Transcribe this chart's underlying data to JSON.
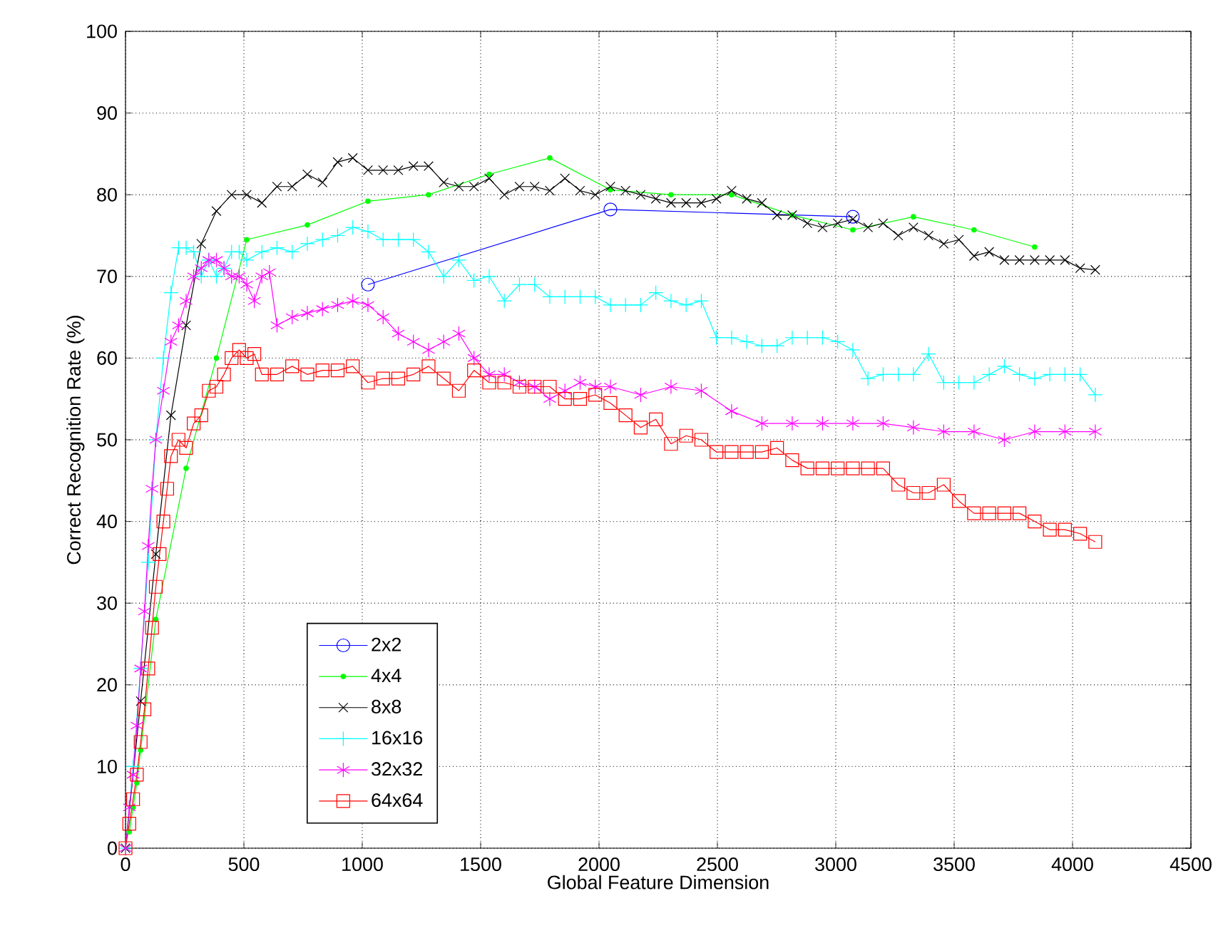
{
  "chart_data": {
    "type": "line",
    "xlabel": "Global Feature Dimension",
    "ylabel": "Correct Recognition Rate (%)",
    "xlim": [
      0,
      4500
    ],
    "ylim": [
      0,
      100
    ],
    "xticks": [
      0,
      500,
      1000,
      1500,
      2000,
      2500,
      3000,
      3500,
      4000,
      4500
    ],
    "yticks": [
      0,
      10,
      20,
      30,
      40,
      50,
      60,
      70,
      80,
      90,
      100
    ],
    "grid": true,
    "legend": "bottom left",
    "series": [
      {
        "name": "2x2",
        "color": "#0000ff",
        "marker": "circle",
        "x": [
          1024,
          2048,
          3072
        ],
        "values": [
          69,
          78.2,
          77.3
        ]
      },
      {
        "name": "4x4",
        "color": "#00ff00",
        "marker": "point",
        "x": [
          16,
          32,
          48,
          64,
          128,
          256,
          384,
          512,
          768,
          1024,
          1280,
          1536,
          1792,
          2048,
          2304,
          2560,
          2816,
          3072,
          3328,
          3584,
          3840
        ],
        "values": [
          2,
          5,
          8,
          12,
          28,
          46.5,
          60,
          74.5,
          76.3,
          79.2,
          80,
          82.5,
          84.5,
          80.6,
          80,
          80,
          77.5,
          75.7,
          77.3,
          75.7,
          73.6
        ]
      },
      {
        "name": "8x8",
        "color": "#000000",
        "marker": "x",
        "x": [
          0,
          64,
          128,
          192,
          256,
          320,
          384,
          448,
          512,
          576,
          640,
          704,
          768,
          832,
          896,
          960,
          1024,
          1088,
          1152,
          1216,
          1280,
          1344,
          1408,
          1472,
          1536,
          1600,
          1664,
          1728,
          1792,
          1856,
          1920,
          1984,
          2048,
          2112,
          2176,
          2240,
          2304,
          2368,
          2432,
          2496,
          2560,
          2624,
          2688,
          2752,
          2816,
          2880,
          2944,
          3008,
          3072,
          3136,
          3200,
          3264,
          3328,
          3392,
          3456,
          3520,
          3584,
          3648,
          3712,
          3776,
          3840,
          3904,
          3968,
          4032,
          4096
        ],
        "values": [
          0,
          18,
          36,
          53,
          64,
          74,
          78,
          80,
          80,
          79,
          81,
          81,
          82.5,
          81.5,
          84,
          84.5,
          83,
          83,
          83,
          83.5,
          83.5,
          81.5,
          81,
          81,
          82,
          80,
          81,
          81,
          80.5,
          82,
          80.5,
          80,
          81,
          80.5,
          80,
          79.5,
          79,
          79,
          79,
          79.5,
          80.5,
          79.5,
          79,
          77.5,
          77.5,
          76.5,
          76,
          76.5,
          77,
          76,
          76.5,
          75,
          76,
          75,
          74,
          74.5,
          72.5,
          73,
          72,
          72,
          72,
          72,
          72,
          71,
          70.8
        ]
      },
      {
        "name": "16x16",
        "color": "#00ffff",
        "marker": "plus",
        "x": [
          0,
          32,
          64,
          96,
          128,
          160,
          192,
          224,
          256,
          288,
          320,
          352,
          384,
          416,
          448,
          480,
          512,
          576,
          640,
          704,
          768,
          832,
          896,
          960,
          1024,
          1088,
          1152,
          1216,
          1280,
          1344,
          1408,
          1472,
          1536,
          1600,
          1664,
          1728,
          1792,
          1856,
          1920,
          1984,
          2048,
          2112,
          2176,
          2240,
          2304,
          2368,
          2432,
          2496,
          2560,
          2624,
          2688,
          2752,
          2816,
          2880,
          2944,
          3008,
          3072,
          3136,
          3200,
          3264,
          3328,
          3392,
          3456,
          3520,
          3584,
          3648,
          3712,
          3776,
          3840,
          3904,
          3968,
          4032,
          4096
        ],
        "values": [
          0,
          10,
          22,
          35,
          50,
          60,
          68,
          73.5,
          73.5,
          73,
          70,
          72,
          70,
          71,
          73,
          73,
          72,
          73,
          73.5,
          73,
          74,
          74.5,
          75,
          76,
          75.5,
          74.5,
          74.5,
          74.5,
          73,
          70,
          72,
          69.5,
          70,
          67,
          69,
          69,
          67.5,
          67.5,
          67.5,
          67.5,
          66.5,
          66.5,
          66.5,
          68,
          67,
          66.5,
          67,
          62.5,
          62.5,
          62,
          61.5,
          61.5,
          62.5,
          62.5,
          62.5,
          62,
          61,
          57.5,
          58,
          58,
          58,
          60.5,
          57,
          57,
          57,
          58,
          59,
          58,
          57.5,
          58,
          58,
          58,
          55.5
        ]
      },
      {
        "name": "32x32",
        "color": "#ff00ff",
        "marker": "cross",
        "x": [
          0,
          16,
          32,
          48,
          64,
          80,
          96,
          112,
          128,
          160,
          192,
          224,
          256,
          288,
          320,
          352,
          384,
          416,
          448,
          480,
          512,
          544,
          576,
          608,
          640,
          704,
          768,
          832,
          896,
          960,
          1024,
          1088,
          1152,
          1216,
          1280,
          1344,
          1408,
          1472,
          1536,
          1600,
          1664,
          1728,
          1792,
          1856,
          1920,
          1984,
          2048,
          2176,
          2304,
          2432,
          2560,
          2688,
          2816,
          2944,
          3072,
          3200,
          3328,
          3456,
          3584,
          3712,
          3840,
          3968,
          4096
        ],
        "values": [
          0,
          5,
          9,
          15,
          22,
          29,
          37,
          44,
          50,
          56,
          62,
          64,
          67,
          70,
          71,
          72,
          72,
          71,
          70,
          70,
          69,
          67,
          70,
          70.5,
          64,
          65,
          65.5,
          66,
          66.5,
          67,
          66.5,
          65,
          63,
          62,
          61,
          62,
          63,
          60,
          58,
          58,
          57,
          56.5,
          55,
          56,
          57,
          56.5,
          56.5,
          55.5,
          56.5,
          56,
          53.5,
          52,
          52,
          52,
          52,
          52,
          51.5,
          51,
          51,
          50,
          51,
          51,
          51
        ]
      },
      {
        "name": "64x64",
        "color": "#ff0000",
        "marker": "square",
        "x": [
          0,
          16,
          32,
          48,
          64,
          80,
          96,
          112,
          128,
          144,
          160,
          176,
          192,
          224,
          256,
          288,
          320,
          352,
          384,
          416,
          448,
          480,
          512,
          544,
          576,
          640,
          704,
          768,
          832,
          896,
          960,
          1024,
          1088,
          1152,
          1216,
          1280,
          1344,
          1408,
          1472,
          1536,
          1600,
          1664,
          1728,
          1792,
          1856,
          1920,
          1984,
          2048,
          2112,
          2176,
          2240,
          2304,
          2368,
          2432,
          2496,
          2560,
          2624,
          2688,
          2752,
          2816,
          2880,
          2944,
          3008,
          3072,
          3136,
          3200,
          3264,
          3328,
          3392,
          3456,
          3520,
          3584,
          3648,
          3712,
          3776,
          3840,
          3904,
          3968,
          4032,
          4096
        ],
        "values": [
          0,
          3,
          6,
          9,
          13,
          17,
          22,
          27,
          32,
          36,
          40,
          44,
          48,
          50,
          49,
          52,
          53,
          56,
          56.5,
          58,
          60,
          61,
          60,
          60.5,
          58,
          58,
          59,
          58,
          58.5,
          58.5,
          59,
          57,
          57.5,
          57.5,
          58,
          59,
          57.5,
          56,
          58.5,
          57,
          57,
          56.5,
          56.5,
          56.5,
          55,
          55,
          55.5,
          54.5,
          53,
          51.5,
          52.5,
          49.5,
          50.5,
          50,
          48.5,
          48.5,
          48.5,
          48.5,
          49,
          47.5,
          46.5,
          46.5,
          46.5,
          46.5,
          46.5,
          46.5,
          44.5,
          43.5,
          43.5,
          44.5,
          42.5,
          41,
          41,
          41,
          41,
          40,
          39,
          39,
          38.5,
          37.5
        ]
      }
    ]
  }
}
